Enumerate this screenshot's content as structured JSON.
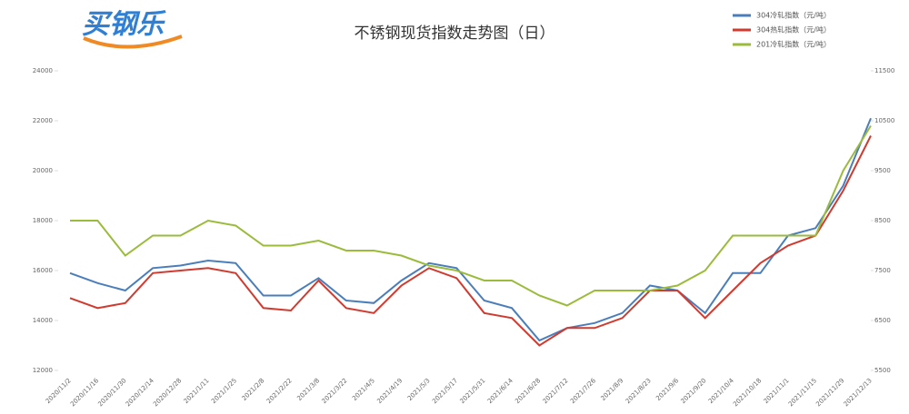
{
  "logo": "买钢乐",
  "chart_data": {
    "type": "line",
    "title": "不锈钢现货指数走势图（日）",
    "categories": [
      "2020/11/2",
      "2020/11/16",
      "2020/11/30",
      "2020/12/14",
      "2020/12/28",
      "2021/1/11",
      "2021/1/25",
      "2021/2/8",
      "2021/2/22",
      "2021/3/8",
      "2021/3/22",
      "2021/4/5",
      "2021/4/19",
      "2021/5/3",
      "2021/5/17",
      "2021/5/31",
      "2021/6/14",
      "2021/6/28",
      "2021/7/12",
      "2021/7/26",
      "2021/8/9",
      "2021/8/23",
      "2021/9/6",
      "2021/9/20",
      "2021/10/4",
      "2021/10/18",
      "2021/11/1",
      "2021/11/15",
      "2021/11/29",
      "2021/12/13"
    ],
    "series": [
      {
        "name": "304冷轧指数（元/吨）",
        "color": "#4a7ebb",
        "values": [
          15900,
          15500,
          15200,
          16100,
          16200,
          16400,
          16300,
          15000,
          15000,
          15700,
          14800,
          14700,
          15600,
          16300,
          16100,
          14800,
          14500,
          13200,
          13700,
          13900,
          14300,
          15400,
          15200,
          14300,
          15900,
          15900,
          17400,
          17700,
          19400,
          22100
        ]
      },
      {
        "name": "304热轧指数（元/吨）",
        "color": "#d03a2f",
        "values": [
          14900,
          14500,
          14700,
          15900,
          16000,
          16100,
          15900,
          14500,
          14400,
          15600,
          14500,
          14300,
          15400,
          16100,
          15700,
          14300,
          14100,
          13000,
          13700,
          13700,
          14100,
          15200,
          15200,
          14100,
          15200,
          16300,
          17000,
          17400,
          19200,
          21400
        ]
      },
      {
        "name": "201冷轧指数（元/吨）",
        "color": "#9bbb3b",
        "axis": "y2",
        "values": [
          8500,
          8500,
          7800,
          8200,
          8200,
          8500,
          8400,
          8000,
          8000,
          8100,
          7900,
          7900,
          7800,
          7600,
          7500,
          7300,
          7300,
          7000,
          6800,
          7100,
          7100,
          7100,
          7200,
          7500,
          8200,
          8200,
          8200,
          8200,
          9500,
          10400
        ]
      }
    ],
    "ylim": [
      12000,
      24000
    ],
    "yticks": [
      12000,
      14000,
      16000,
      18000,
      20000,
      22000,
      24000
    ],
    "y2lim": [
      5500,
      11500
    ],
    "y2ticks": [
      5500,
      6500,
      7500,
      8500,
      9500,
      10500,
      11500
    ],
    "legend": "top-right"
  }
}
